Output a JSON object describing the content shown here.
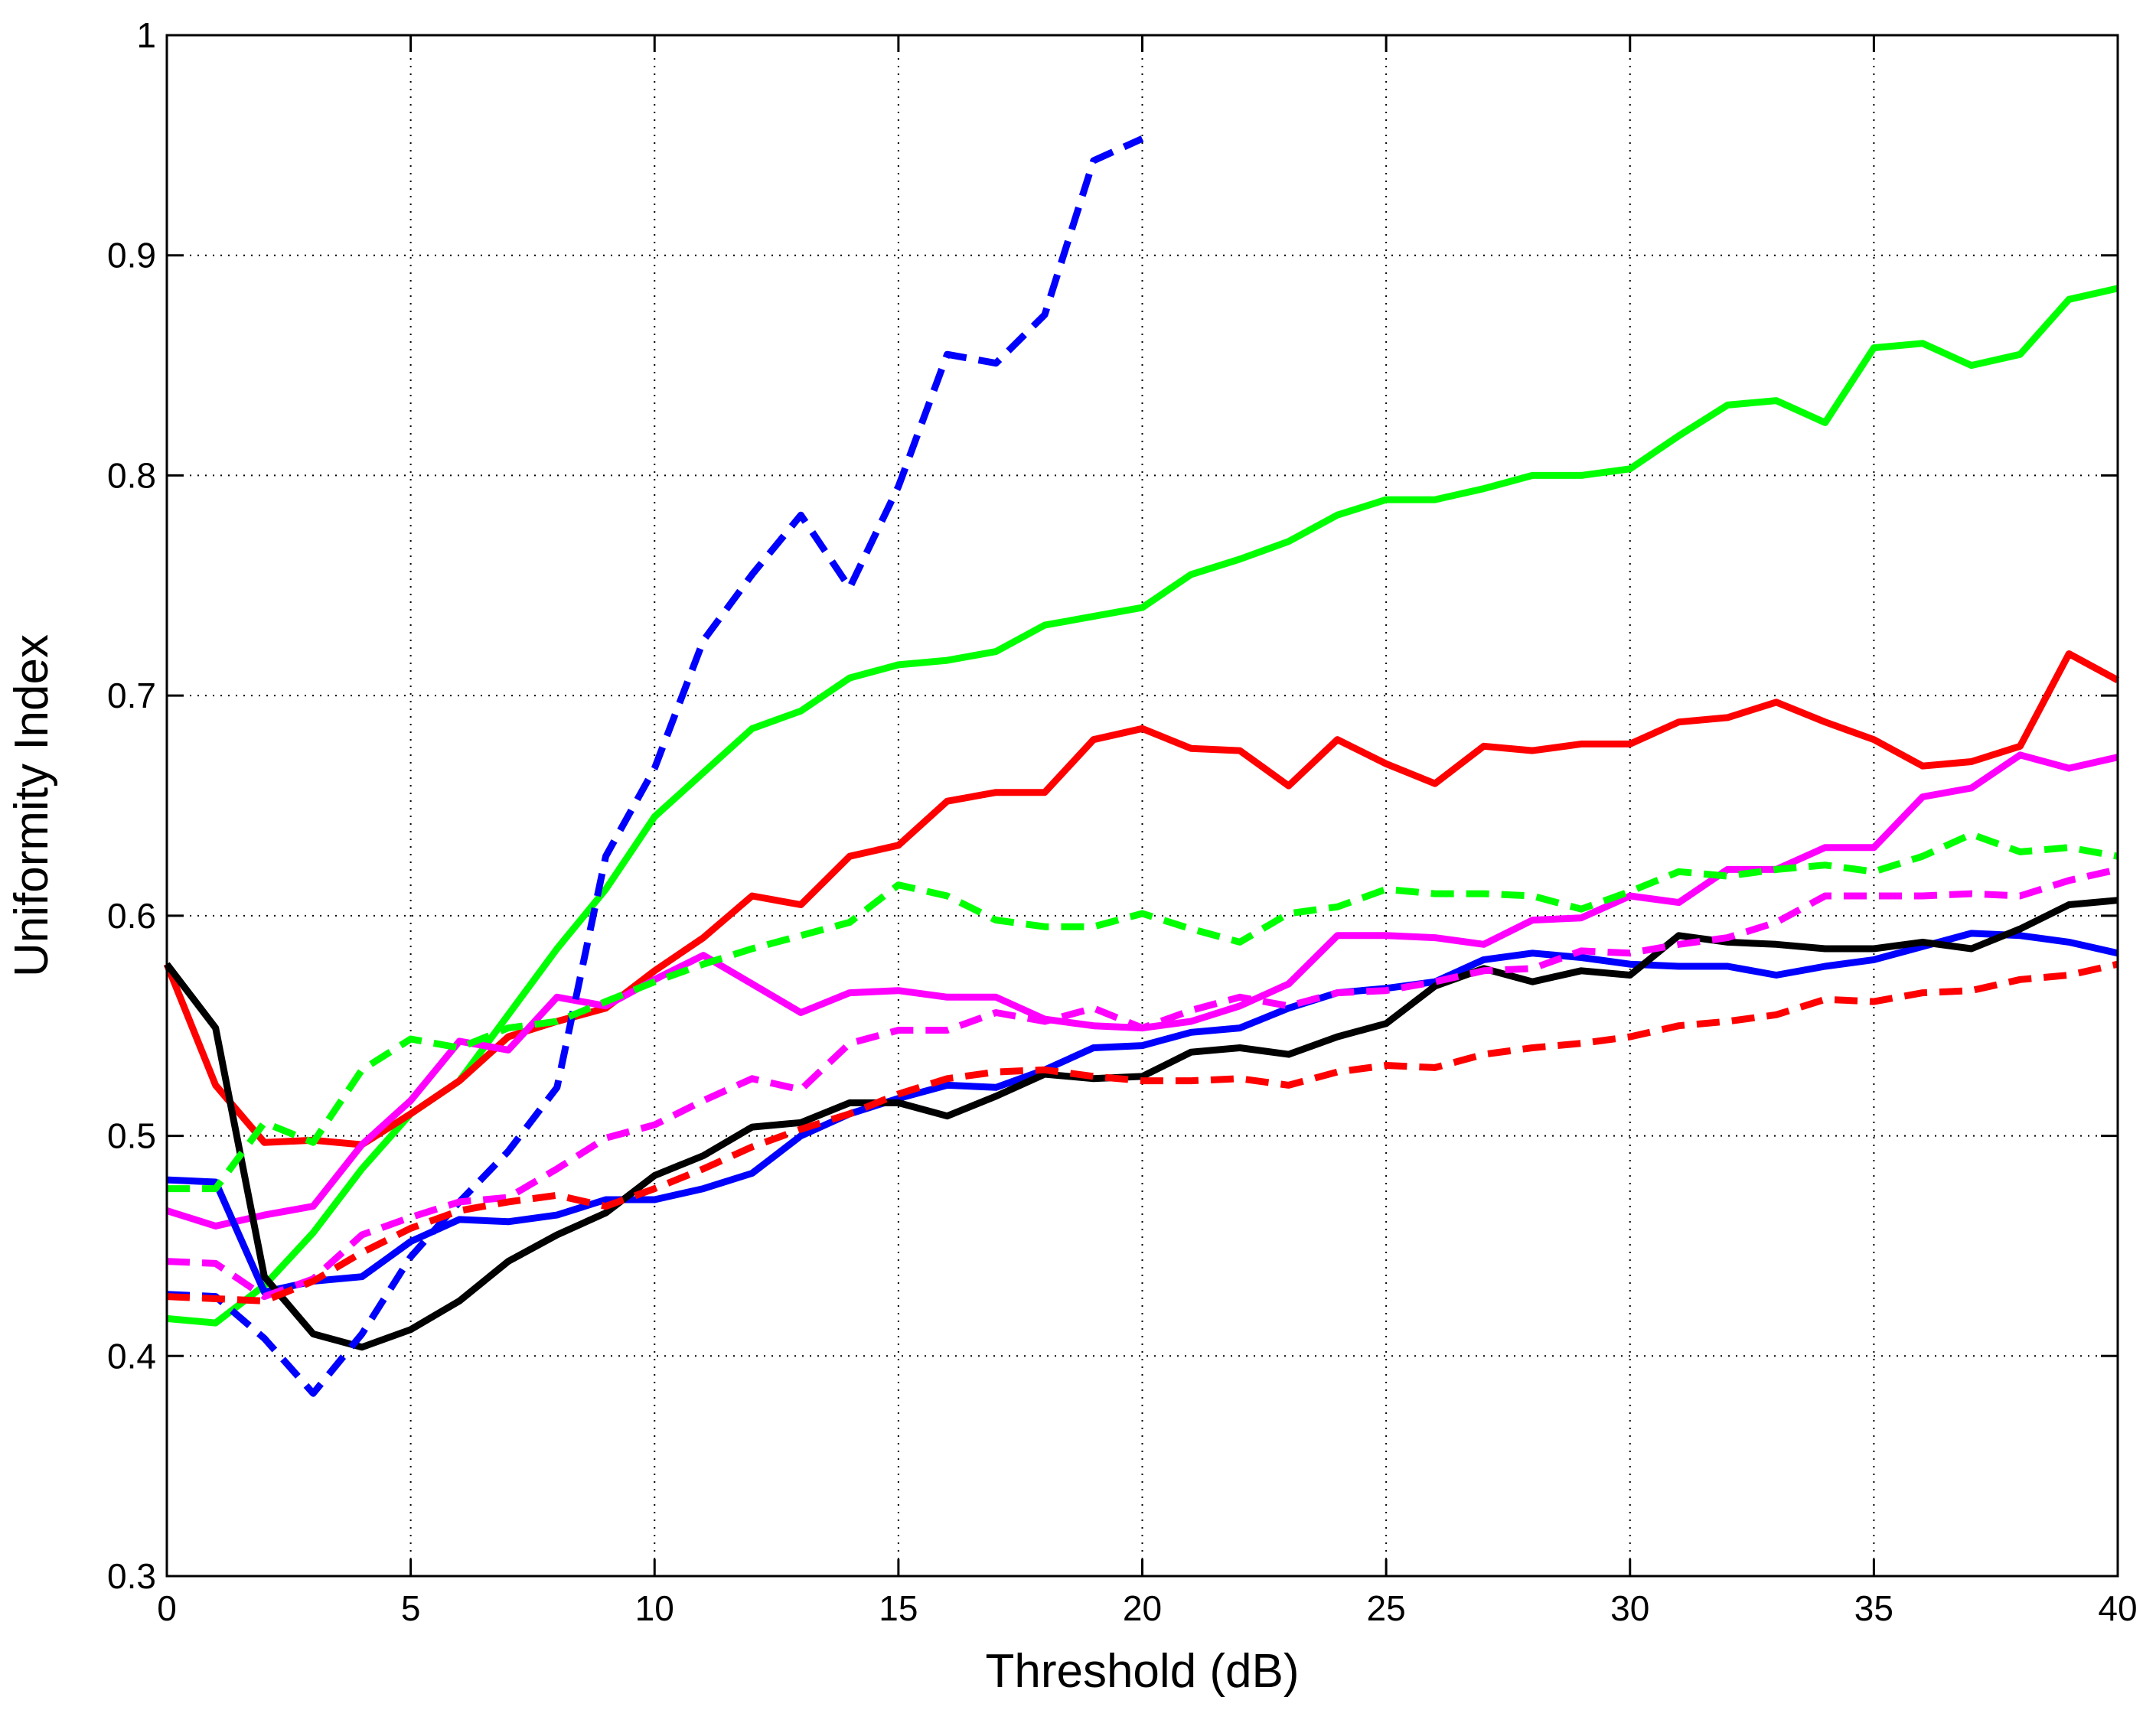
{
  "chart_data": {
    "type": "line",
    "title": "",
    "xlabel": "Threshold (dB)",
    "ylabel": "Uniformity Index",
    "xlim": [
      0,
      40
    ],
    "ylim": [
      0.3,
      1.0
    ],
    "xticks": [
      "0",
      "5",
      "10",
      "15",
      "20",
      "25",
      "30",
      "35",
      "40"
    ],
    "yticks": [
      "0.3",
      "0.4",
      "0.5",
      "0.6",
      "0.7",
      "0.8",
      "0.9",
      "1"
    ],
    "grid": true,
    "grid_style": "dotted",
    "legend": "none",
    "series": [
      {
        "color": "#00ff00",
        "style": "solid",
        "x": [
          0,
          1,
          2,
          3,
          4,
          5,
          6,
          7,
          8,
          9,
          10,
          11,
          12,
          13,
          14,
          15,
          16,
          17,
          18,
          19,
          20,
          21,
          22,
          23,
          24,
          25,
          26,
          27,
          28,
          29,
          30,
          31,
          32,
          33,
          34,
          35,
          36,
          37,
          38,
          39,
          40
        ],
        "y": [
          0.417,
          0.415,
          0.432,
          0.456,
          0.485,
          0.51,
          0.525,
          0.555,
          0.585,
          0.612,
          0.645,
          0.665,
          0.685,
          0.693,
          0.708,
          0.714,
          0.716,
          0.72,
          0.732,
          0.736,
          0.74,
          0.755,
          0.762,
          0.77,
          0.782,
          0.789,
          0.789,
          0.794,
          0.8,
          0.8,
          0.803,
          0.818,
          0.832,
          0.834,
          0.824,
          0.858,
          0.86,
          0.85,
          0.855,
          0.88,
          0.885
        ]
      },
      {
        "color": "#ff0000",
        "style": "solid",
        "x": [
          0,
          1,
          2,
          3,
          4,
          5,
          6,
          7,
          8,
          9,
          10,
          11,
          12,
          13,
          14,
          15,
          16,
          17,
          18,
          19,
          20,
          21,
          22,
          23,
          24,
          25,
          26,
          27,
          28,
          29,
          30,
          31,
          32,
          33,
          34,
          35,
          36,
          37,
          38,
          39,
          40
        ],
        "y": [
          0.578,
          0.523,
          0.497,
          0.498,
          0.496,
          0.51,
          0.525,
          0.545,
          0.552,
          0.558,
          0.575,
          0.59,
          0.609,
          0.605,
          0.627,
          0.632,
          0.652,
          0.656,
          0.656,
          0.68,
          0.685,
          0.676,
          0.675,
          0.659,
          0.68,
          0.669,
          0.66,
          0.677,
          0.675,
          0.678,
          0.678,
          0.688,
          0.69,
          0.697,
          0.688,
          0.68,
          0.668,
          0.67,
          0.677,
          0.719,
          0.707
        ]
      },
      {
        "color": "#ff00ff",
        "style": "solid",
        "x": [
          0,
          1,
          2,
          3,
          4,
          5,
          6,
          7,
          8,
          9,
          10,
          11,
          12,
          13,
          14,
          15,
          16,
          17,
          18,
          19,
          20,
          21,
          22,
          23,
          24,
          25,
          26,
          27,
          28,
          29,
          30,
          31,
          32,
          33,
          34,
          35,
          36,
          37,
          38,
          39,
          40
        ],
        "y": [
          0.466,
          0.459,
          0.464,
          0.468,
          0.496,
          0.516,
          0.543,
          0.539,
          0.563,
          0.559,
          0.571,
          0.582,
          0.569,
          0.556,
          0.565,
          0.566,
          0.563,
          0.563,
          0.553,
          0.55,
          0.549,
          0.552,
          0.559,
          0.569,
          0.591,
          0.591,
          0.59,
          0.587,
          0.598,
          0.599,
          0.609,
          0.606,
          0.621,
          0.621,
          0.631,
          0.631,
          0.654,
          0.658,
          0.673,
          0.667,
          0.672
        ]
      },
      {
        "color": "#0000ff",
        "style": "solid",
        "x": [
          0,
          1,
          2,
          3,
          4,
          5,
          6,
          7,
          8,
          9,
          10,
          11,
          12,
          13,
          14,
          15,
          16,
          17,
          18,
          19,
          20,
          21,
          22,
          23,
          24,
          25,
          26,
          27,
          28,
          29,
          30,
          31,
          32,
          33,
          34,
          35,
          36,
          37,
          38,
          39,
          40
        ],
        "y": [
          0.48,
          0.479,
          0.429,
          0.434,
          0.436,
          0.452,
          0.462,
          0.461,
          0.464,
          0.471,
          0.471,
          0.476,
          0.483,
          0.5,
          0.51,
          0.517,
          0.523,
          0.522,
          0.53,
          0.54,
          0.541,
          0.547,
          0.549,
          0.558,
          0.565,
          0.567,
          0.57,
          0.58,
          0.583,
          0.581,
          0.578,
          0.577,
          0.577,
          0.573,
          0.577,
          0.58,
          0.586,
          0.592,
          0.591,
          0.588,
          0.583
        ]
      },
      {
        "color": "#000000",
        "style": "solid",
        "x": [
          0,
          1,
          2,
          3,
          4,
          5,
          6,
          7,
          8,
          9,
          10,
          11,
          12,
          13,
          14,
          15,
          16,
          17,
          18,
          19,
          20,
          21,
          22,
          23,
          24,
          25,
          26,
          27,
          28,
          29,
          30,
          31,
          32,
          33,
          34,
          35,
          36,
          37,
          38,
          39,
          40
        ],
        "y": [
          0.578,
          0.549,
          0.436,
          0.41,
          0.404,
          0.412,
          0.425,
          0.443,
          0.455,
          0.465,
          0.482,
          0.491,
          0.504,
          0.506,
          0.515,
          0.515,
          0.509,
          0.518,
          0.528,
          0.526,
          0.527,
          0.538,
          0.54,
          0.537,
          0.545,
          0.551,
          0.568,
          0.576,
          0.57,
          0.575,
          0.573,
          0.591,
          0.588,
          0.587,
          0.585,
          0.585,
          0.588,
          0.585,
          0.594,
          0.605,
          0.607
        ]
      },
      {
        "color": "#0000ff",
        "style": "dashed",
        "x": [
          0,
          1,
          2,
          3,
          4,
          5,
          6,
          7,
          8,
          9,
          10,
          11,
          12,
          13,
          14,
          15,
          16,
          17,
          18,
          19,
          20
        ],
        "y": [
          0.428,
          0.427,
          0.408,
          0.383,
          0.41,
          0.445,
          0.47,
          0.493,
          0.522,
          0.627,
          0.667,
          0.725,
          0.755,
          0.782,
          0.749,
          0.795,
          0.855,
          0.851,
          0.873,
          0.943,
          0.953
        ]
      },
      {
        "color": "#00ff00",
        "style": "dashed",
        "x": [
          0,
          1,
          2,
          3,
          4,
          5,
          6,
          7,
          8,
          9,
          10,
          11,
          12,
          13,
          14,
          15,
          16,
          17,
          18,
          19,
          20,
          21,
          22,
          23,
          24,
          25,
          26,
          27,
          28,
          29,
          30,
          31,
          32,
          33,
          34,
          35,
          36,
          37,
          38,
          39,
          40
        ],
        "y": [
          0.476,
          0.476,
          0.506,
          0.497,
          0.53,
          0.544,
          0.54,
          0.549,
          0.552,
          0.561,
          0.57,
          0.578,
          0.585,
          0.591,
          0.597,
          0.614,
          0.609,
          0.598,
          0.595,
          0.595,
          0.601,
          0.594,
          0.588,
          0.601,
          0.604,
          0.612,
          0.61,
          0.61,
          0.609,
          0.603,
          0.611,
          0.62,
          0.618,
          0.621,
          0.623,
          0.62,
          0.627,
          0.637,
          0.629,
          0.631,
          0.627
        ]
      },
      {
        "color": "#ff00ff",
        "style": "dashed",
        "x": [
          0,
          1,
          2,
          3,
          4,
          5,
          6,
          7,
          8,
          9,
          10,
          11,
          12,
          13,
          14,
          15,
          16,
          17,
          18,
          19,
          20,
          21,
          22,
          23,
          24,
          25,
          26,
          27,
          28,
          29,
          30,
          31,
          32,
          33,
          34,
          35,
          36,
          37,
          38,
          39,
          40
        ],
        "y": [
          0.443,
          0.442,
          0.427,
          0.435,
          0.455,
          0.463,
          0.47,
          0.472,
          0.485,
          0.499,
          0.505,
          0.516,
          0.526,
          0.521,
          0.542,
          0.548,
          0.548,
          0.556,
          0.552,
          0.558,
          0.549,
          0.557,
          0.563,
          0.559,
          0.565,
          0.566,
          0.57,
          0.575,
          0.576,
          0.584,
          0.583,
          0.587,
          0.59,
          0.597,
          0.609,
          0.609,
          0.609,
          0.61,
          0.609,
          0.616,
          0.621
        ]
      },
      {
        "color": "#ff0000",
        "style": "dashed",
        "x": [
          0,
          1,
          2,
          3,
          4,
          5,
          6,
          7,
          8,
          9,
          10,
          11,
          12,
          13,
          14,
          15,
          16,
          17,
          18,
          19,
          20,
          21,
          22,
          23,
          24,
          25,
          26,
          27,
          28,
          29,
          30,
          31,
          32,
          33,
          34,
          35,
          36,
          37,
          38,
          39,
          40
        ],
        "y": [
          0.427,
          0.426,
          0.425,
          0.434,
          0.447,
          0.458,
          0.466,
          0.47,
          0.473,
          0.468,
          0.476,
          0.485,
          0.495,
          0.503,
          0.51,
          0.519,
          0.526,
          0.529,
          0.53,
          0.527,
          0.525,
          0.525,
          0.526,
          0.523,
          0.529,
          0.532,
          0.531,
          0.537,
          0.54,
          0.542,
          0.545,
          0.55,
          0.552,
          0.555,
          0.562,
          0.561,
          0.565,
          0.566,
          0.571,
          0.573,
          0.578
        ]
      }
    ]
  }
}
